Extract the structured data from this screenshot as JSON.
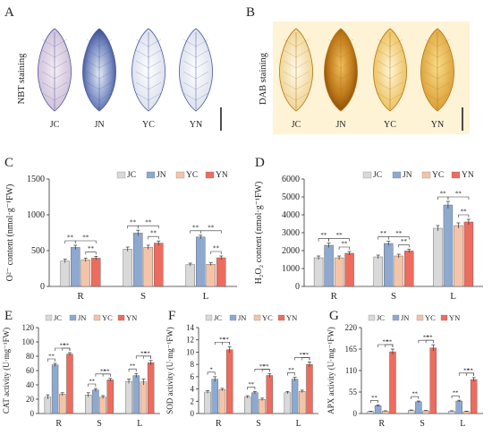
{
  "colors": {
    "JC": "#d9d9d9",
    "JN": "#8ea9d0",
    "YC": "#f5c4a8",
    "YN": "#ee6c5e",
    "nbt_leaf_edge": "#4a5a9c",
    "dab_leaf_edge": "#b6750e",
    "dab_background": "#fff3d6"
  },
  "panels": {
    "A": {
      "letter": "A",
      "side_label": "NBT staining",
      "leaf_labels": [
        "JC",
        "JN",
        "YC",
        "YN"
      ]
    },
    "B": {
      "letter": "B",
      "side_label": "DAB staining",
      "leaf_labels": [
        "JC",
        "JN",
        "YC",
        "YN"
      ]
    },
    "C": {
      "letter": "C"
    },
    "D": {
      "letter": "D"
    },
    "E": {
      "letter": "E"
    },
    "F": {
      "letter": "F"
    },
    "G": {
      "letter": "G"
    }
  },
  "chart_data": [
    {
      "panel": "C",
      "type": "bar",
      "categories": [
        "R",
        "S",
        "L"
      ],
      "ylabel": "O²⁻ content (nmol·g⁻¹FW)",
      "ylim": [
        0,
        1500
      ],
      "yticks": [
        0,
        500,
        1000,
        1500
      ],
      "legend_position": "top-right",
      "series": [
        {
          "name": "JC",
          "values": [
            355,
            520,
            305
          ],
          "errors": [
            25,
            30,
            20
          ]
        },
        {
          "name": "JN",
          "values": [
            545,
            745,
            690
          ],
          "errors": [
            30,
            40,
            25
          ]
        },
        {
          "name": "YC",
          "values": [
            370,
            545,
            310
          ],
          "errors": [
            25,
            30,
            20
          ]
        },
        {
          "name": "YN",
          "values": [
            395,
            605,
            400
          ],
          "errors": [
            25,
            30,
            25
          ]
        }
      ],
      "significance": [
        {
          "from": 0,
          "to": 1,
          "label": "**",
          "group": 0
        },
        {
          "from": 1,
          "to": 3,
          "label": "**",
          "group": 0
        },
        {
          "from": 2,
          "to": 3,
          "label": "**",
          "group": 0
        },
        {
          "from": 0,
          "to": 1,
          "label": "**",
          "group": 1
        },
        {
          "from": 1,
          "to": 3,
          "label": "**",
          "group": 1
        },
        {
          "from": 2,
          "to": 3,
          "label": "**",
          "group": 1
        },
        {
          "from": 0,
          "to": 1,
          "label": "**",
          "group": 2
        },
        {
          "from": 1,
          "to": 3,
          "label": "**",
          "group": 2
        },
        {
          "from": 2,
          "to": 3,
          "label": "**",
          "group": 2
        }
      ]
    },
    {
      "panel": "D",
      "type": "bar",
      "categories": [
        "R",
        "S",
        "L"
      ],
      "ylabel": "H₂O₂ content (nmol·g⁻¹FW)",
      "ylim": [
        0,
        6000
      ],
      "yticks": [
        0,
        1000,
        2000,
        3000,
        4000,
        5000,
        6000
      ],
      "legend_position": "top-right",
      "series": [
        {
          "name": "JC",
          "values": [
            1600,
            1650,
            3250
          ],
          "errors": [
            100,
            100,
            150
          ]
        },
        {
          "name": "JN",
          "values": [
            2300,
            2400,
            4550
          ],
          "errors": [
            120,
            120,
            200
          ]
        },
        {
          "name": "YC",
          "values": [
            1600,
            1700,
            3400
          ],
          "errors": [
            100,
            100,
            150
          ]
        },
        {
          "name": "YN",
          "values": [
            1850,
            1980,
            3600
          ],
          "errors": [
            100,
            100,
            150
          ]
        }
      ],
      "significance": [
        {
          "from": 0,
          "to": 1,
          "label": "**",
          "group": 0
        },
        {
          "from": 1,
          "to": 3,
          "label": "**",
          "group": 0
        },
        {
          "from": 2,
          "to": 3,
          "label": "**",
          "group": 0
        },
        {
          "from": 0,
          "to": 1,
          "label": "**",
          "group": 1
        },
        {
          "from": 1,
          "to": 3,
          "label": "**",
          "group": 1
        },
        {
          "from": 2,
          "to": 3,
          "label": "**",
          "group": 1
        },
        {
          "from": 0,
          "to": 1,
          "label": "**",
          "group": 2
        },
        {
          "from": 1,
          "to": 3,
          "label": "**",
          "group": 2
        },
        {
          "from": 2,
          "to": 3,
          "label": "**",
          "group": 2
        }
      ]
    },
    {
      "panel": "E",
      "type": "bar",
      "categories": [
        "R",
        "S",
        "L"
      ],
      "ylabel": "CAT activity (U·mg⁻¹FW)",
      "ylim": [
        0,
        120
      ],
      "yticks": [
        0,
        20,
        40,
        60,
        80,
        100,
        120
      ],
      "legend_position": "top",
      "series": [
        {
          "name": "JC",
          "values": [
            23,
            26,
            45
          ],
          "errors": [
            3,
            3,
            3
          ]
        },
        {
          "name": "JN",
          "values": [
            68,
            33,
            53
          ],
          "errors": [
            2,
            2,
            3
          ]
        },
        {
          "name": "YC",
          "values": [
            27,
            23,
            44
          ],
          "errors": [
            2,
            2,
            4
          ]
        },
        {
          "name": "YN",
          "values": [
            83,
            47,
            71
          ],
          "errors": [
            2,
            2,
            3
          ]
        }
      ],
      "significance": [
        {
          "from": 0,
          "to": 1,
          "label": "**",
          "group": 0
        },
        {
          "from": 1,
          "to": 3,
          "label": "**",
          "group": 0
        },
        {
          "from": 2,
          "to": 3,
          "label": "**",
          "group": 0
        },
        {
          "from": 0,
          "to": 1,
          "label": "**",
          "group": 1
        },
        {
          "from": 1,
          "to": 3,
          "label": "**",
          "group": 1
        },
        {
          "from": 2,
          "to": 3,
          "label": "**",
          "group": 1
        },
        {
          "from": 0,
          "to": 1,
          "label": "**",
          "group": 2
        },
        {
          "from": 1,
          "to": 3,
          "label": "**",
          "group": 2
        },
        {
          "from": 2,
          "to": 3,
          "label": "**",
          "group": 2
        }
      ]
    },
    {
      "panel": "F",
      "type": "bar",
      "categories": [
        "R",
        "S",
        "L"
      ],
      "ylabel": "SOD activity (U·mg⁻¹FW)",
      "ylim": [
        0,
        14
      ],
      "yticks": [
        0,
        2,
        4,
        6,
        8,
        10,
        12,
        14
      ],
      "legend_position": "top",
      "series": [
        {
          "name": "JC",
          "values": [
            3.5,
            2.7,
            3.4
          ],
          "errors": [
            0.2,
            0.2,
            0.2
          ]
        },
        {
          "name": "JN",
          "values": [
            5.6,
            3.4,
            5.6
          ],
          "errors": [
            0.4,
            0.2,
            0.3
          ]
        },
        {
          "name": "YC",
          "values": [
            3.9,
            2.3,
            3.6
          ],
          "errors": [
            0.2,
            0.2,
            0.2
          ]
        },
        {
          "name": "YN",
          "values": [
            10.4,
            6.2,
            8.0
          ],
          "errors": [
            0.5,
            0.3,
            0.4
          ]
        }
      ],
      "significance": [
        {
          "from": 0,
          "to": 1,
          "label": "*",
          "group": 0
        },
        {
          "from": 1,
          "to": 3,
          "label": "**",
          "group": 0
        },
        {
          "from": 2,
          "to": 3,
          "label": "**",
          "group": 0
        },
        {
          "from": 0,
          "to": 1,
          "label": "**",
          "group": 1
        },
        {
          "from": 1,
          "to": 3,
          "label": "**",
          "group": 1
        },
        {
          "from": 2,
          "to": 3,
          "label": "**",
          "group": 1
        },
        {
          "from": 0,
          "to": 1,
          "label": "**",
          "group": 2
        },
        {
          "from": 1,
          "to": 3,
          "label": "**",
          "group": 2
        },
        {
          "from": 2,
          "to": 3,
          "label": "**",
          "group": 2
        }
      ]
    },
    {
      "panel": "G",
      "type": "bar",
      "categories": [
        "R",
        "S",
        "L"
      ],
      "ylabel": "APX activity (U·mg⁻¹FW)",
      "ylim": [
        0,
        220
      ],
      "yticks": [
        0,
        55,
        110,
        165,
        220
      ],
      "legend_position": "top",
      "series": [
        {
          "name": "JC",
          "values": [
            5,
            8,
            6
          ],
          "errors": [
            1,
            1,
            1
          ]
        },
        {
          "name": "JN",
          "values": [
            20,
            30,
            32
          ],
          "errors": [
            2,
            2,
            2
          ]
        },
        {
          "name": "YC",
          "values": [
            6,
            7,
            5
          ],
          "errors": [
            1,
            1,
            1
          ]
        },
        {
          "name": "YN",
          "values": [
            158,
            168,
            87
          ],
          "errors": [
            7,
            8,
            5
          ]
        }
      ],
      "significance": [
        {
          "from": 0,
          "to": 1,
          "label": "**",
          "group": 0
        },
        {
          "from": 1,
          "to": 3,
          "label": "**",
          "group": 0
        },
        {
          "from": 2,
          "to": 3,
          "label": "**",
          "group": 0
        },
        {
          "from": 0,
          "to": 1,
          "label": "**",
          "group": 1
        },
        {
          "from": 1,
          "to": 3,
          "label": "**",
          "group": 1
        },
        {
          "from": 2,
          "to": 3,
          "label": "**",
          "group": 1
        },
        {
          "from": 0,
          "to": 1,
          "label": "**",
          "group": 2
        },
        {
          "from": 1,
          "to": 3,
          "label": "**",
          "group": 2
        },
        {
          "from": 2,
          "to": 3,
          "label": "**",
          "group": 2
        }
      ]
    }
  ]
}
